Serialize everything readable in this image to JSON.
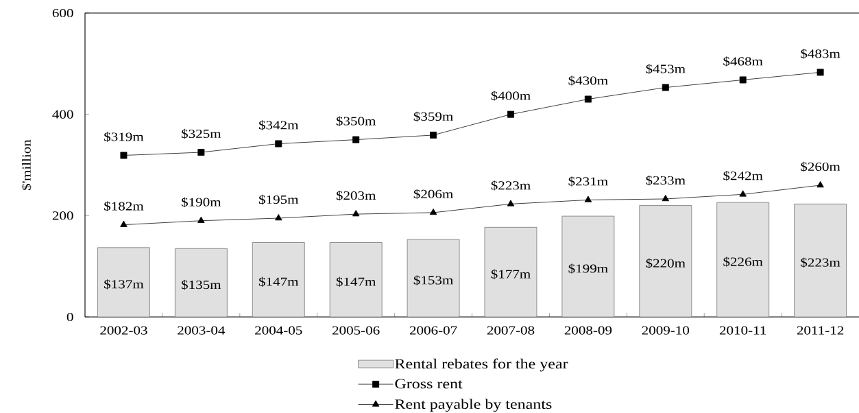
{
  "chart_data": {
    "type": "bar",
    "ylabel": "$'million",
    "categories": [
      "2002-03",
      "2003-04",
      "2004-05",
      "2005-06",
      "2006-07",
      "2007-08",
      "2008-09",
      "2009-10",
      "2010-11",
      "2011-12"
    ],
    "ylim": [
      0,
      600
    ],
    "yticks": [
      0,
      200,
      400,
      600
    ],
    "legend": "bottom",
    "series": [
      {
        "name": "Rental rebates for the year",
        "color": "#e0e0e0",
        "values": [
          137,
          135,
          147,
          147,
          153,
          177,
          199,
          220,
          226,
          223
        ],
        "value_labels": [
          "$137m",
          "$135m",
          "$147m",
          "$147m",
          "$153m",
          "$177m",
          "$199m",
          "$220m",
          "$226m",
          "$223m"
        ]
      },
      {
        "name": "Gross rent",
        "type": "line",
        "color": "#000000",
        "marker": "square",
        "values": [
          319,
          325,
          342,
          350,
          359,
          400,
          430,
          453,
          468,
          483
        ],
        "value_labels": [
          "$319m",
          "$325m",
          "$342m",
          "$350m",
          "$359m",
          "$400m",
          "$430m",
          "$453m",
          "$468m",
          "$483m"
        ]
      },
      {
        "name": "Rent payable by tenants",
        "type": "line",
        "color": "#000000",
        "marker": "triangle",
        "values": [
          182,
          190,
          195,
          203,
          206,
          223,
          231,
          233,
          242,
          260
        ],
        "value_labels": [
          "$182m",
          "$190m",
          "$195m",
          "$203m",
          "$206m",
          "$223m",
          "$231m",
          "$233m",
          "$242m",
          "$260m"
        ]
      }
    ]
  }
}
